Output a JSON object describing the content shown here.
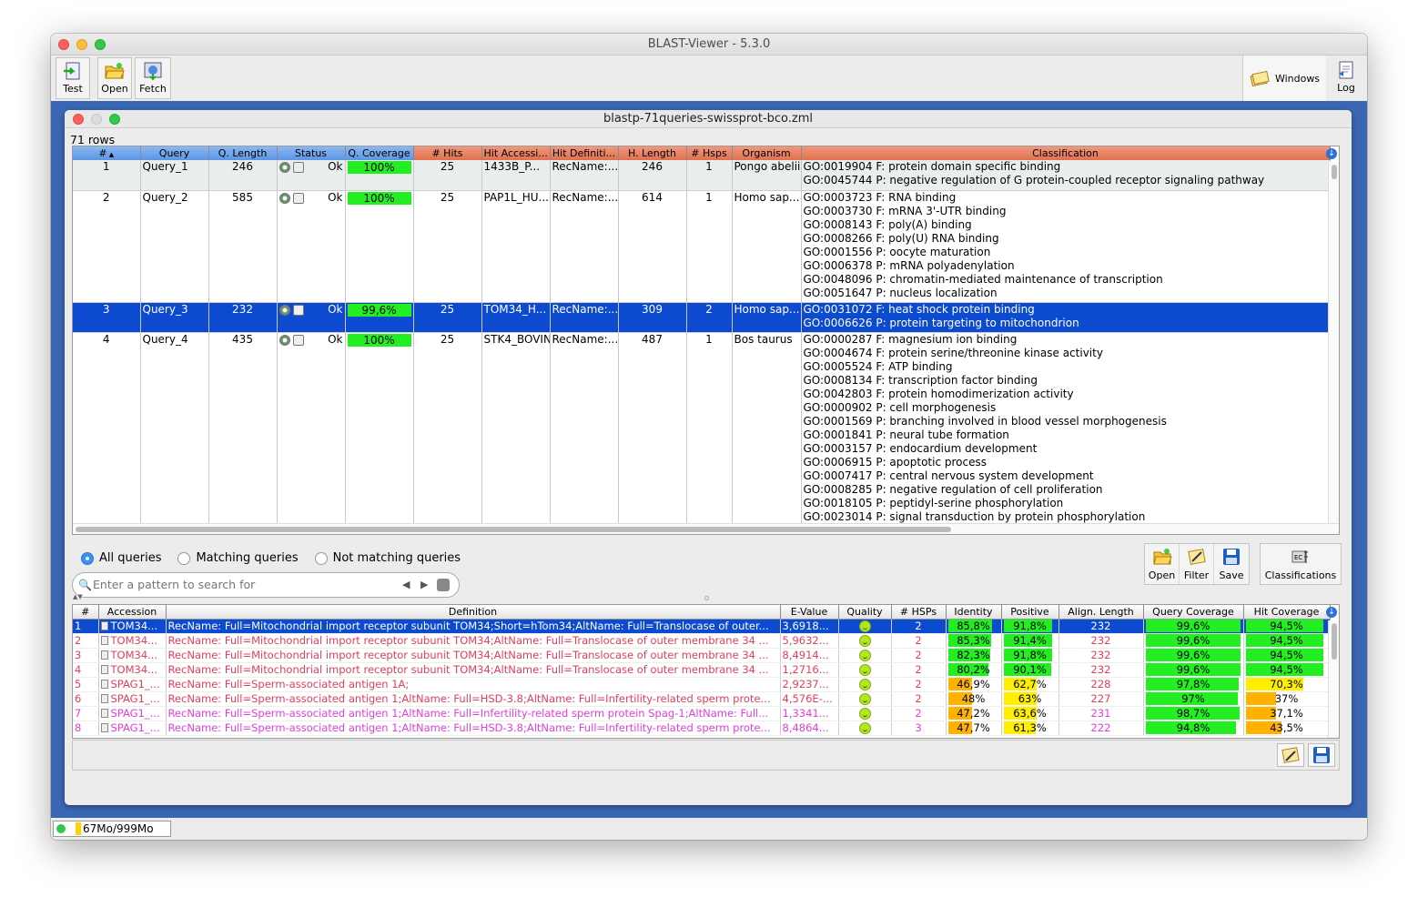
{
  "app": {
    "title": "BLAST-Viewer - 5.3.0"
  },
  "toolbar": {
    "test": "Test",
    "open": "Open",
    "fetch": "Fetch",
    "windows": "Windows",
    "log": "Log"
  },
  "doc": {
    "title": "blastp-71queries-swissprot-bco.zml",
    "row_count": "71 rows"
  },
  "query_table": {
    "columns": [
      "#",
      "Query",
      "Q. Length",
      "Status",
      "Q. Coverage",
      "# Hits",
      "Hit Accessi...",
      "Hit Definiti...",
      "H. Length",
      "# Hsps",
      "Organism",
      "Classification"
    ],
    "rows": [
      {
        "num": "1",
        "query": "Query_1",
        "qlen": "246",
        "status": "Ok",
        "cov": "100%",
        "hits": "25",
        "acc": "1433B_P...",
        "def": "RecName:...",
        "hlen": "246",
        "hsps": "1",
        "org": "Pongo abelii",
        "go": [
          "GO:0019904 F: protein domain specific binding",
          "GO:0045744 P: negative regulation of G protein-coupled receptor signaling pathway"
        ]
      },
      {
        "num": "2",
        "query": "Query_2",
        "qlen": "585",
        "status": "Ok",
        "cov": "100%",
        "hits": "25",
        "acc": "PAP1L_HU...",
        "def": "RecName:...",
        "hlen": "614",
        "hsps": "1",
        "org": "Homo sap...",
        "go": [
          "GO:0003723 F: RNA binding",
          "GO:0003730 F: mRNA 3'-UTR binding",
          "GO:0008143 F: poly(A) binding",
          "GO:0008266 F: poly(U) RNA binding",
          "GO:0001556 P: oocyte maturation",
          "GO:0006378 P: mRNA polyadenylation",
          "GO:0048096 P: chromatin-mediated maintenance of transcription",
          "GO:0051647 P: nucleus localization"
        ]
      },
      {
        "num": "3",
        "query": "Query_3",
        "qlen": "232",
        "status": "Ok",
        "cov": "99,6%",
        "hits": "25",
        "acc": "TOM34_H...",
        "def": "RecName:...",
        "hlen": "309",
        "hsps": "2",
        "org": "Homo sap...",
        "go": [
          "GO:0031072 F: heat shock protein binding",
          "GO:0006626 P: protein targeting to mitochondrion"
        ]
      },
      {
        "num": "4",
        "query": "Query_4",
        "qlen": "435",
        "status": "Ok",
        "cov": "100%",
        "hits": "25",
        "acc": "STK4_BOVIN",
        "def": "RecName:...",
        "hlen": "487",
        "hsps": "1",
        "org": "Bos taurus",
        "go": [
          "GO:0000287 F: magnesium ion binding",
          "GO:0004674 F: protein serine/threonine kinase activity",
          "GO:0005524 F: ATP binding",
          "GO:0008134 F: transcription factor binding",
          "GO:0042803 F: protein homodimerization activity",
          "GO:0000902 P: cell morphogenesis",
          "GO:0001569 P: branching involved in blood vessel morphogenesis",
          "GO:0001841 P: neural tube formation",
          "GO:0003157 P: endocardium development",
          "GO:0006915 P: apoptotic process",
          "GO:0007417 P: central nervous system development",
          "GO:0008285 P: negative regulation of cell proliferation",
          "GO:0018105 P: peptidyl-serine phosphorylation",
          "GO:0023014 P: signal transduction by protein phosphorylation"
        ]
      }
    ]
  },
  "filters": {
    "all": "All queries",
    "matching": "Matching queries",
    "not_matching": "Not matching queries"
  },
  "search": {
    "placeholder": "Enter a pattern to search for"
  },
  "actions": {
    "open": "Open",
    "filter": "Filter",
    "save": "Save",
    "classifications": "Classifications"
  },
  "hits_table": {
    "columns": [
      "#",
      "Accession",
      "Definition",
      "E-Value",
      "Quality",
      "# HSPs",
      "Identity",
      "Positive",
      "Align. Length",
      "Query Coverage",
      "Hit Coverage"
    ],
    "rows": [
      {
        "num": "1",
        "acc": "TOM34...",
        "def": "RecName: Full=Mitochondrial import receptor subunit TOM34;Short=hTom34;AltName: Full=Translocase of outer...",
        "eval": "3,6918...",
        "quality": "good",
        "hsps": "2",
        "identity": "85,8%",
        "id_v": 85.8,
        "positive": "91,8%",
        "pos_v": 91.8,
        "alen": "232",
        "qcov": "99,6%",
        "qcov_v": 99.6,
        "hcov": "94,5%",
        "hcov_v": 94.5,
        "color": "sel"
      },
      {
        "num": "2",
        "acc": "TOM34...",
        "def": "RecName: Full=Mitochondrial import receptor subunit TOM34;AltName: Full=Translocase of outer membrane 34 ...",
        "eval": "5,9632...",
        "quality": "good",
        "hsps": "2",
        "identity": "85,3%",
        "id_v": 85.3,
        "positive": "91,4%",
        "pos_v": 91.4,
        "alen": "232",
        "qcov": "99,6%",
        "qcov_v": 99.6,
        "hcov": "94,5%",
        "hcov_v": 94.5,
        "color": "red"
      },
      {
        "num": "3",
        "acc": "TOM34...",
        "def": "RecName: Full=Mitochondrial import receptor subunit TOM34;AltName: Full=Translocase of outer membrane 34 ...",
        "eval": "8,4914...",
        "quality": "good",
        "hsps": "2",
        "identity": "82,3%",
        "id_v": 82.3,
        "positive": "91,8%",
        "pos_v": 91.8,
        "alen": "232",
        "qcov": "99,6%",
        "qcov_v": 99.6,
        "hcov": "94,5%",
        "hcov_v": 94.5,
        "color": "red"
      },
      {
        "num": "4",
        "acc": "TOM34...",
        "def": "RecName: Full=Mitochondrial import receptor subunit TOM34;AltName: Full=Translocase of outer membrane 34 ...",
        "eval": "1,2716...",
        "quality": "good",
        "hsps": "2",
        "identity": "80,2%",
        "id_v": 80.2,
        "positive": "90,1%",
        "pos_v": 90.1,
        "alen": "232",
        "qcov": "99,6%",
        "qcov_v": 99.6,
        "hcov": "94,5%",
        "hcov_v": 94.5,
        "color": "red"
      },
      {
        "num": "5",
        "acc": "SPAG1_...",
        "def": "RecName: Full=Sperm-associated antigen 1A;",
        "eval": "2,9237...",
        "quality": "good",
        "hsps": "2",
        "identity": "46,9%",
        "id_v": 46.9,
        "positive": "62,7%",
        "pos_v": 62.7,
        "alen": "228",
        "qcov": "97,8%",
        "qcov_v": 97.8,
        "hcov": "70,3%",
        "hcov_v": 70.3,
        "color": "red"
      },
      {
        "num": "6",
        "acc": "SPAG1_...",
        "def": "RecName: Full=Sperm-associated antigen 1;AltName: Full=HSD-3.8;AltName: Full=Infertility-related sperm prote...",
        "eval": "4,576E-...",
        "quality": "good",
        "hsps": "2",
        "identity": "48%",
        "id_v": 48,
        "positive": "63%",
        "pos_v": 63,
        "alen": "227",
        "qcov": "97%",
        "qcov_v": 97,
        "hcov": "37%",
        "hcov_v": 37,
        "color": "red"
      },
      {
        "num": "7",
        "acc": "SPAG1_...",
        "def": "RecName: Full=Sperm-associated antigen 1;AltName: Full=Infertility-related sperm protein Spag-1;AltName: Full...",
        "eval": "1,3341...",
        "quality": "good",
        "hsps": "2",
        "identity": "47,2%",
        "id_v": 47.2,
        "positive": "63,6%",
        "pos_v": 63.6,
        "alen": "231",
        "qcov": "98,7%",
        "qcov_v": 98.7,
        "hcov": "37,1%",
        "hcov_v": 37.1,
        "color": "pink"
      },
      {
        "num": "8",
        "acc": "SPAG1_...",
        "def": "RecName: Full=Sperm-associated antigen 1;AltName: Full=HSD-3.8;AltName: Full=Infertility-related sperm prote...",
        "eval": "8,4864...",
        "quality": "good",
        "hsps": "3",
        "identity": "47,7%",
        "id_v": 47.7,
        "positive": "61,3%",
        "pos_v": 61.3,
        "alen": "222",
        "qcov": "94,8%",
        "qcov_v": 94.8,
        "hcov": "43,5%",
        "hcov_v": 43.5,
        "color": "pink"
      }
    ]
  },
  "status": {
    "memory": "67Mo/999Mo"
  },
  "colors": {
    "selection": "#0c4ad0",
    "desktop": "#3a67b3",
    "good": "#22ee22",
    "mid": "#ffee00",
    "low": "#ffb300"
  }
}
